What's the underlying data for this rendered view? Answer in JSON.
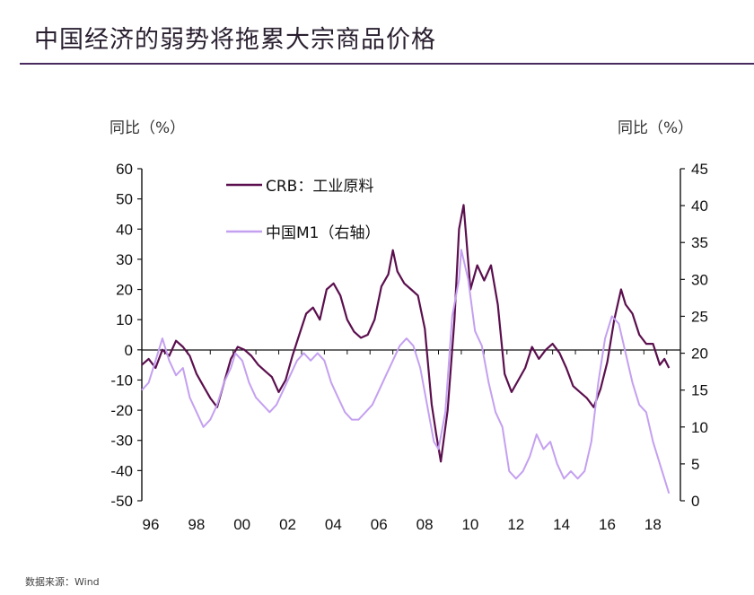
{
  "page": {
    "title": "中国经济的弱势将拖累大宗商品价格",
    "source": "数据来源：Wind"
  },
  "chart_data": {
    "type": "line",
    "left_axis_label": "同比（%）",
    "right_axis_label": "同比（%）",
    "ylim_left": [
      -50,
      60
    ],
    "yticks_left": [
      60,
      50,
      40,
      30,
      20,
      10,
      0,
      -10,
      -20,
      -30,
      -40,
      -50
    ],
    "ylim_right": [
      0,
      45
    ],
    "yticks_right": [
      45,
      40,
      35,
      30,
      25,
      20,
      15,
      10,
      5,
      0
    ],
    "xlim": [
      1996,
      2019.6
    ],
    "xticks": [
      "96",
      "98",
      "00",
      "02",
      "04",
      "06",
      "08",
      "10",
      "12",
      "14",
      "16",
      "18"
    ],
    "grid": false,
    "legend_position": "top-left-inside",
    "series": [
      {
        "name": "CRB：工业原料",
        "axis": "left",
        "color": "#5b0f4e",
        "points": [
          [
            1996.0,
            -5
          ],
          [
            1996.3,
            -3
          ],
          [
            1996.6,
            -6
          ],
          [
            1996.9,
            0
          ],
          [
            1997.2,
            -2
          ],
          [
            1997.5,
            3
          ],
          [
            1997.8,
            1
          ],
          [
            1998.1,
            -2
          ],
          [
            1998.4,
            -8
          ],
          [
            1998.7,
            -12
          ],
          [
            1999.0,
            -16
          ],
          [
            1999.3,
            -19
          ],
          [
            1999.6,
            -11
          ],
          [
            1999.9,
            -3
          ],
          [
            2000.2,
            1
          ],
          [
            2000.5,
            0
          ],
          [
            2000.8,
            -2
          ],
          [
            2001.1,
            -5
          ],
          [
            2001.4,
            -7
          ],
          [
            2001.7,
            -9
          ],
          [
            2002.0,
            -14
          ],
          [
            2002.3,
            -10
          ],
          [
            2002.6,
            -2
          ],
          [
            2002.9,
            5
          ],
          [
            2003.2,
            12
          ],
          [
            2003.5,
            14
          ],
          [
            2003.8,
            10
          ],
          [
            2004.1,
            20
          ],
          [
            2004.4,
            22
          ],
          [
            2004.7,
            18
          ],
          [
            2005.0,
            10
          ],
          [
            2005.3,
            6
          ],
          [
            2005.6,
            4
          ],
          [
            2005.9,
            5
          ],
          [
            2006.2,
            10
          ],
          [
            2006.5,
            21
          ],
          [
            2006.8,
            25
          ],
          [
            2007.0,
            33
          ],
          [
            2007.2,
            26
          ],
          [
            2007.5,
            22
          ],
          [
            2007.8,
            20
          ],
          [
            2008.1,
            18
          ],
          [
            2008.4,
            7
          ],
          [
            2008.7,
            -18
          ],
          [
            2008.9,
            -28
          ],
          [
            2009.1,
            -37
          ],
          [
            2009.4,
            -20
          ],
          [
            2009.7,
            10
          ],
          [
            2009.9,
            40
          ],
          [
            2010.1,
            48
          ],
          [
            2010.4,
            20
          ],
          [
            2010.7,
            28
          ],
          [
            2011.0,
            23
          ],
          [
            2011.3,
            28
          ],
          [
            2011.6,
            15
          ],
          [
            2011.9,
            -8
          ],
          [
            2012.2,
            -14
          ],
          [
            2012.5,
            -10
          ],
          [
            2012.8,
            -6
          ],
          [
            2013.1,
            1
          ],
          [
            2013.4,
            -3
          ],
          [
            2013.7,
            0
          ],
          [
            2014.0,
            2
          ],
          [
            2014.3,
            -1
          ],
          [
            2014.6,
            -6
          ],
          [
            2014.9,
            -12
          ],
          [
            2015.2,
            -14
          ],
          [
            2015.5,
            -16
          ],
          [
            2015.8,
            -19
          ],
          [
            2016.1,
            -13
          ],
          [
            2016.4,
            -4
          ],
          [
            2016.7,
            10
          ],
          [
            2017.0,
            20
          ],
          [
            2017.2,
            15
          ],
          [
            2017.5,
            12
          ],
          [
            2017.8,
            5
          ],
          [
            2018.1,
            2
          ],
          [
            2018.4,
            2
          ],
          [
            2018.7,
            -5
          ],
          [
            2018.9,
            -3
          ],
          [
            2019.1,
            -6
          ]
        ]
      },
      {
        "name": "中国M1（右轴）",
        "axis": "right",
        "color": "#c4a0f0",
        "points": [
          [
            1996.0,
            15
          ],
          [
            1996.3,
            16
          ],
          [
            1996.6,
            19
          ],
          [
            1996.9,
            22
          ],
          [
            1997.2,
            19
          ],
          [
            1997.5,
            17
          ],
          [
            1997.8,
            18
          ],
          [
            1998.1,
            14
          ],
          [
            1998.4,
            12
          ],
          [
            1998.7,
            10
          ],
          [
            1999.0,
            11
          ],
          [
            1999.3,
            13
          ],
          [
            1999.6,
            16
          ],
          [
            1999.9,
            18
          ],
          [
            2000.1,
            20
          ],
          [
            2000.4,
            19
          ],
          [
            2000.7,
            16
          ],
          [
            2001.0,
            14
          ],
          [
            2001.3,
            13
          ],
          [
            2001.6,
            12
          ],
          [
            2001.9,
            13
          ],
          [
            2002.2,
            15
          ],
          [
            2002.5,
            17
          ],
          [
            2002.8,
            19
          ],
          [
            2003.1,
            20
          ],
          [
            2003.4,
            19
          ],
          [
            2003.7,
            20
          ],
          [
            2004.0,
            19
          ],
          [
            2004.3,
            16
          ],
          [
            2004.6,
            14
          ],
          [
            2004.9,
            12
          ],
          [
            2005.2,
            11
          ],
          [
            2005.5,
            11
          ],
          [
            2005.8,
            12
          ],
          [
            2006.1,
            13
          ],
          [
            2006.4,
            15
          ],
          [
            2006.7,
            17
          ],
          [
            2007.0,
            19
          ],
          [
            2007.3,
            21
          ],
          [
            2007.6,
            22
          ],
          [
            2007.9,
            21
          ],
          [
            2008.2,
            18
          ],
          [
            2008.5,
            13
          ],
          [
            2008.8,
            8
          ],
          [
            2009.0,
            7
          ],
          [
            2009.3,
            12
          ],
          [
            2009.6,
            25
          ],
          [
            2009.9,
            30
          ],
          [
            2010.0,
            34
          ],
          [
            2010.3,
            30
          ],
          [
            2010.6,
            23
          ],
          [
            2010.9,
            21
          ],
          [
            2011.2,
            16
          ],
          [
            2011.5,
            12
          ],
          [
            2011.8,
            10
          ],
          [
            2012.1,
            4
          ],
          [
            2012.4,
            3
          ],
          [
            2012.7,
            4
          ],
          [
            2013.0,
            6
          ],
          [
            2013.3,
            9
          ],
          [
            2013.6,
            7
          ],
          [
            2013.9,
            8
          ],
          [
            2014.2,
            5
          ],
          [
            2014.5,
            3
          ],
          [
            2014.8,
            4
          ],
          [
            2015.1,
            3
          ],
          [
            2015.4,
            4
          ],
          [
            2015.7,
            8
          ],
          [
            2016.0,
            16
          ],
          [
            2016.3,
            22
          ],
          [
            2016.6,
            25
          ],
          [
            2016.9,
            24
          ],
          [
            2017.2,
            20
          ],
          [
            2017.5,
            16
          ],
          [
            2017.8,
            13
          ],
          [
            2018.1,
            12
          ],
          [
            2018.4,
            8
          ],
          [
            2018.7,
            5
          ],
          [
            2018.9,
            3
          ],
          [
            2019.1,
            1
          ]
        ]
      }
    ]
  }
}
